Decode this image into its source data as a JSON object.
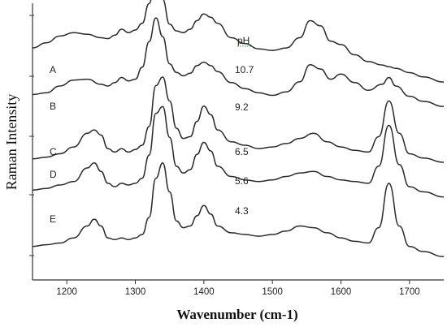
{
  "chart_data": {
    "type": "line",
    "xlabel": "Wavenumber (cm-1)",
    "ylabel": "Raman Intensity",
    "xlim": [
      1150,
      1750
    ],
    "xticks": [
      1200,
      1300,
      1400,
      1500,
      1600,
      1700
    ],
    "legend_title": "pH",
    "grid": false,
    "series": [
      {
        "name": "A",
        "ph": "10.7",
        "x": [
          1150,
          1170,
          1190,
          1210,
          1230,
          1250,
          1260,
          1270,
          1280,
          1290,
          1300,
          1310,
          1320,
          1330,
          1340,
          1350,
          1360,
          1370,
          1380,
          1390,
          1400,
          1410,
          1420,
          1440,
          1460,
          1480,
          1500,
          1520,
          1540,
          1555,
          1570,
          1585,
          1600,
          1620,
          1640,
          1660,
          1670,
          1680,
          1700,
          1720,
          1750
        ],
        "y": [
          0.58,
          0.64,
          0.72,
          0.76,
          0.74,
          0.7,
          0.69,
          0.73,
          0.8,
          0.76,
          0.79,
          0.87,
          1.1,
          1.45,
          1.15,
          0.86,
          0.78,
          0.76,
          0.8,
          0.9,
          0.98,
          0.94,
          0.87,
          0.7,
          0.63,
          0.57,
          0.55,
          0.58,
          0.7,
          0.9,
          0.84,
          0.66,
          0.62,
          0.5,
          0.42,
          0.38,
          0.36,
          0.34,
          0.29,
          0.24,
          0.18
        ]
      },
      {
        "name": "B",
        "ph": "9.2",
        "x": [
          1150,
          1170,
          1190,
          1210,
          1230,
          1250,
          1260,
          1270,
          1280,
          1290,
          1300,
          1310,
          1320,
          1330,
          1340,
          1350,
          1360,
          1370,
          1380,
          1390,
          1400,
          1410,
          1420,
          1440,
          1460,
          1480,
          1500,
          1520,
          1540,
          1555,
          1570,
          1585,
          1600,
          1620,
          1640,
          1660,
          1670,
          1680,
          1700,
          1720,
          1750
        ],
        "y": [
          0.3,
          0.32,
          0.4,
          0.47,
          0.48,
          0.42,
          0.4,
          0.44,
          0.5,
          0.46,
          0.48,
          0.62,
          0.92,
          1.2,
          0.98,
          0.66,
          0.56,
          0.52,
          0.55,
          0.64,
          0.68,
          0.64,
          0.57,
          0.44,
          0.37,
          0.32,
          0.29,
          0.33,
          0.45,
          0.65,
          0.6,
          0.48,
          0.54,
          0.44,
          0.35,
          0.42,
          0.5,
          0.4,
          0.28,
          0.22,
          0.16
        ]
      },
      {
        "name": "C",
        "ph": "6.5",
        "x": [
          1150,
          1170,
          1190,
          1210,
          1230,
          1240,
          1250,
          1260,
          1270,
          1280,
          1290,
          1300,
          1310,
          1320,
          1330,
          1340,
          1350,
          1360,
          1370,
          1380,
          1390,
          1400,
          1410,
          1420,
          1440,
          1460,
          1480,
          1500,
          1520,
          1540,
          1560,
          1580,
          1600,
          1620,
          1640,
          1655,
          1670,
          1685,
          1700,
          1720,
          1750
        ],
        "y": [
          0.04,
          0.06,
          0.1,
          0.18,
          0.34,
          0.38,
          0.32,
          0.16,
          0.12,
          0.16,
          0.12,
          0.15,
          0.2,
          0.42,
          0.9,
          1.0,
          0.72,
          0.4,
          0.28,
          0.3,
          0.48,
          0.66,
          0.56,
          0.38,
          0.24,
          0.2,
          0.16,
          0.18,
          0.22,
          0.28,
          0.34,
          0.24,
          0.18,
          0.14,
          0.12,
          0.3,
          0.72,
          0.34,
          0.1,
          0.05,
          0.0
        ]
      },
      {
        "name": "D",
        "ph": "5.6",
        "x": [
          1150,
          1170,
          1190,
          1210,
          1230,
          1240,
          1250,
          1260,
          1270,
          1280,
          1290,
          1300,
          1310,
          1320,
          1330,
          1340,
          1350,
          1360,
          1370,
          1380,
          1390,
          1400,
          1410,
          1420,
          1440,
          1460,
          1480,
          1500,
          1520,
          1540,
          1560,
          1580,
          1600,
          1620,
          1640,
          1655,
          1670,
          1685,
          1700,
          1720,
          1750
        ],
        "y": [
          -0.06,
          -0.04,
          0.0,
          0.04,
          0.2,
          0.26,
          0.16,
          0.02,
          -0.02,
          0.02,
          0.0,
          0.02,
          0.08,
          0.35,
          0.84,
          0.92,
          0.56,
          0.22,
          0.14,
          0.18,
          0.36,
          0.5,
          0.4,
          0.22,
          0.1,
          0.06,
          0.04,
          0.06,
          0.1,
          0.14,
          0.16,
          0.1,
          0.06,
          0.04,
          0.02,
          0.22,
          0.7,
          0.24,
          -0.02,
          -0.08,
          -0.14
        ]
      },
      {
        "name": "E",
        "ph": "4.3",
        "x": [
          1150,
          1170,
          1190,
          1210,
          1230,
          1240,
          1250,
          1260,
          1270,
          1280,
          1290,
          1300,
          1310,
          1320,
          1330,
          1340,
          1350,
          1360,
          1370,
          1380,
          1390,
          1400,
          1410,
          1420,
          1440,
          1460,
          1480,
          1500,
          1520,
          1540,
          1560,
          1580,
          1600,
          1620,
          1640,
          1655,
          1670,
          1685,
          1700,
          1720,
          1750
        ],
        "y": [
          -0.34,
          -0.32,
          -0.3,
          -0.24,
          -0.1,
          -0.02,
          -0.1,
          -0.24,
          -0.26,
          -0.24,
          -0.26,
          -0.24,
          -0.2,
          0.0,
          0.46,
          0.64,
          0.3,
          -0.04,
          -0.12,
          -0.1,
          0.02,
          0.14,
          0.04,
          -0.1,
          -0.18,
          -0.2,
          -0.22,
          -0.2,
          -0.16,
          -0.1,
          -0.12,
          -0.18,
          -0.24,
          -0.28,
          -0.3,
          -0.12,
          0.4,
          -0.1,
          -0.34,
          -0.4,
          -0.46
        ]
      }
    ]
  }
}
